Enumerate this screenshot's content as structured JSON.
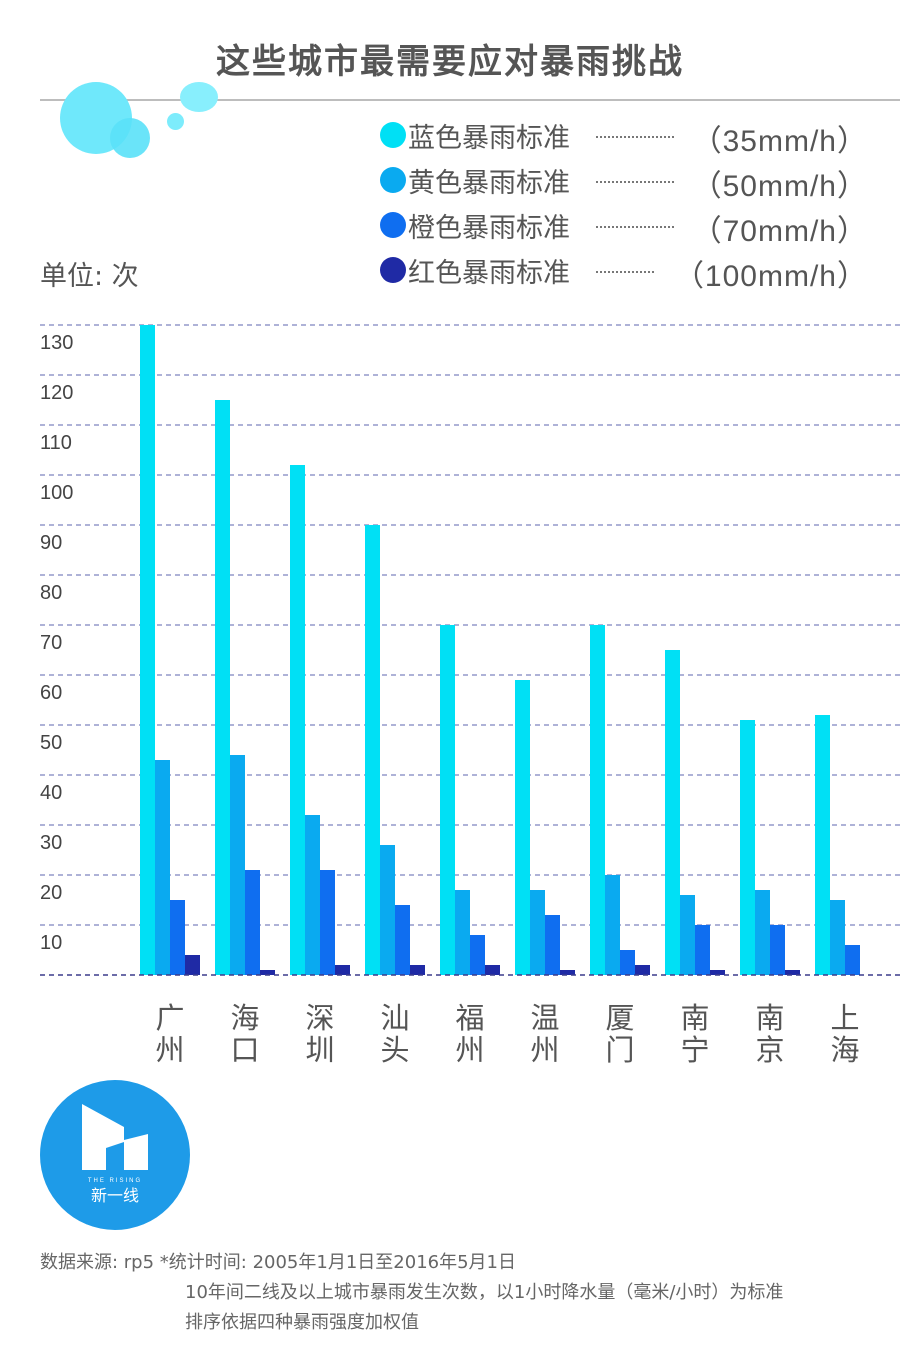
{
  "title": "这些城市最需要应对暴雨挑战",
  "unit_label": "单位: 次",
  "legend": [
    {
      "name": "蓝色暴雨标准",
      "standard": "（35mm/h）",
      "color": "#00e0f5"
    },
    {
      "name": "黄色暴雨标准",
      "standard": "（50mm/h）",
      "color": "#0aaaf0"
    },
    {
      "name": "橙色暴雨标准",
      "standard": "（70mm/h）",
      "color": "#0f6ef0"
    },
    {
      "name": "红色暴雨标准",
      "standard": "（100mm/h）",
      "color": "#1f2aa5"
    }
  ],
  "chart_data": {
    "type": "bar",
    "categories": [
      "广州",
      "海口",
      "深圳",
      "汕头",
      "福州",
      "温州",
      "厦门",
      "南宁",
      "南京",
      "上海"
    ],
    "series": [
      {
        "name": "蓝色暴雨标准",
        "values": [
          130,
          115,
          102,
          90,
          70,
          59,
          70,
          65,
          51,
          52
        ]
      },
      {
        "name": "黄色暴雨标准",
        "values": [
          43,
          44,
          32,
          26,
          17,
          17,
          20,
          16,
          17,
          15
        ]
      },
      {
        "name": "橙色暴雨标准",
        "values": [
          15,
          21,
          21,
          14,
          8,
          12,
          5,
          10,
          10,
          6
        ]
      },
      {
        "name": "红色暴雨标准",
        "values": [
          4,
          1,
          2,
          2,
          2,
          1,
          2,
          1,
          1,
          0
        ]
      }
    ],
    "yticks": [
      10,
      20,
      30,
      40,
      50,
      60,
      70,
      80,
      90,
      100,
      110,
      120,
      130
    ],
    "ylim": [
      0,
      130
    ],
    "ylabel": "单位: 次",
    "grid": true,
    "legend_position": "top-right"
  },
  "logo": {
    "small_text": "THE RISING",
    "text": "新一线",
    "color": "#1e9be8"
  },
  "footer": {
    "source": "数据来源: rp5  *统计时间: 2005年1月1日至2016年5月1日",
    "note1": "10年间二线及以上城市暴雨发生次数，以1小时降水量（毫米/小时）为标准",
    "note2": "排序依据四种暴雨强度加权值"
  },
  "colors": {
    "bubble": "#6fe8fb",
    "grid": "#7d84bf",
    "axis": "#3c3c8c"
  }
}
